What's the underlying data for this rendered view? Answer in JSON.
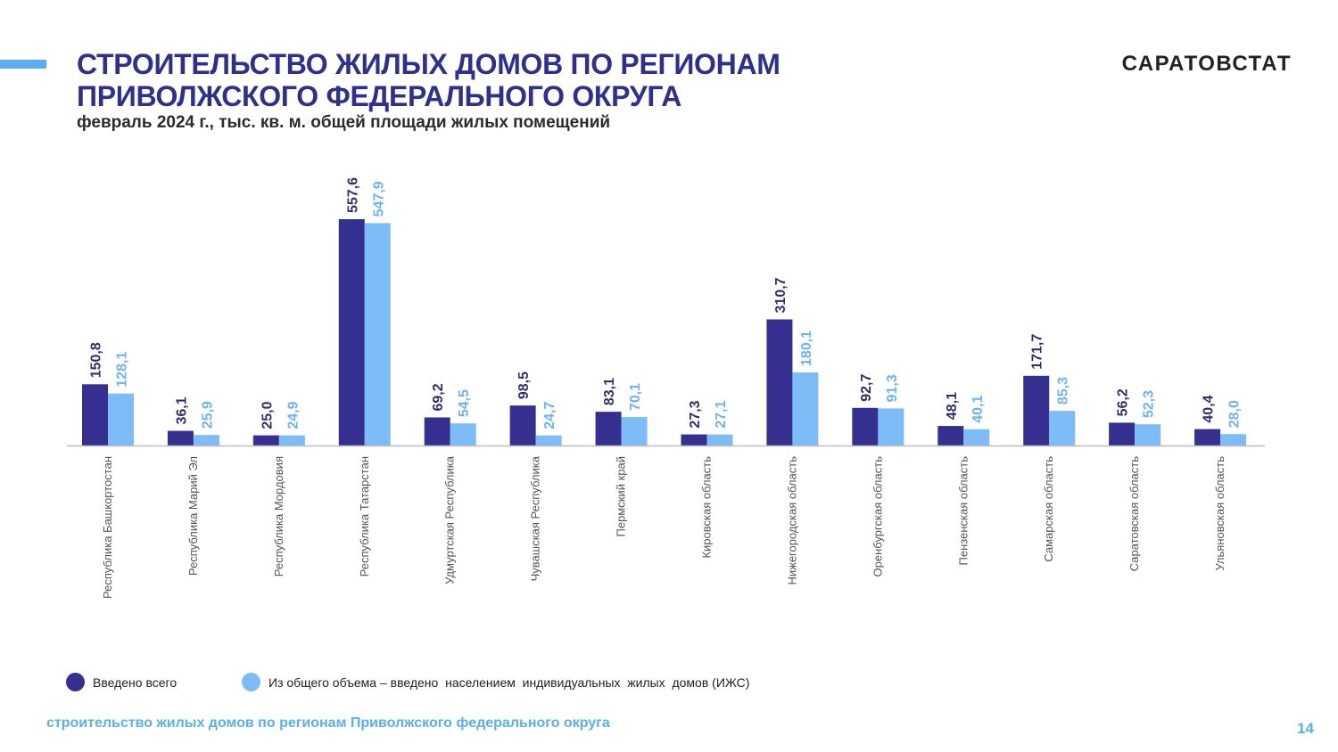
{
  "header": {
    "title_line1": "СТРОИТЕЛЬСТВО ЖИЛЫХ ДОМОВ ПО РЕГИОНАМ",
    "title_line2": "ПРИВОЛЖСКОГО ФЕДЕРАЛЬНОГО ОКРУГА",
    "subtitle": "февраль 2024 г., тыс. кв. м. общей площади жилых помещений",
    "brand": "САРАТОВСТАТ"
  },
  "footer": {
    "text": "строительство жилых домов по регионам Приволжского федерального округа",
    "page_number": "14"
  },
  "colors": {
    "total": "#35308f",
    "izhs": "#7dbcf7",
    "accent": "#5aaef2",
    "title": "#2e2f8f"
  },
  "chart_data": {
    "type": "bar",
    "categories": [
      "Республика Башкортостан",
      "Республика Марий Эл",
      "Республика Мордовия",
      "Республика Татарстан",
      "Удмуртская Республика",
      "Чувашская Республика",
      "Пермский край",
      "Кировская область",
      "Нижегородская область",
      "Оренбургская область",
      "Пензенская область",
      "Самарская область",
      "Саратовская область",
      "Ульяновская область"
    ],
    "series": [
      {
        "name": "Введено всего",
        "values": [
          150.8,
          36.1,
          25.0,
          557.6,
          69.2,
          98.5,
          83.1,
          27.3,
          310.7,
          92.7,
          48.1,
          171.7,
          56.2,
          40.4
        ],
        "labels": [
          "150,8",
          "36,1",
          "25,0",
          "557,6",
          "69,2",
          "98,5",
          "83,1",
          "27,3",
          "310,7",
          "92,7",
          "48,1",
          "171,7",
          "56,2",
          "40,4"
        ]
      },
      {
        "name": "Из общего объема – введено  населением  индивидуальных  жилых  домов (ИЖС)",
        "values": [
          128.1,
          25.9,
          24.9,
          547.9,
          54.5,
          24.7,
          70.1,
          27.1,
          180.1,
          91.3,
          40.1,
          85.3,
          52.3,
          28.0
        ],
        "labels": [
          "128,1",
          "25,9",
          "24,9",
          "547,9",
          "54,5",
          "24,7",
          "70,1",
          "27,1",
          "180,1",
          "91,3",
          "40,1",
          "85,3",
          "52,3",
          "28,0"
        ]
      }
    ],
    "ylim": [
      0,
      557.6
    ],
    "grid": false,
    "legend_position": "bottom-left"
  }
}
